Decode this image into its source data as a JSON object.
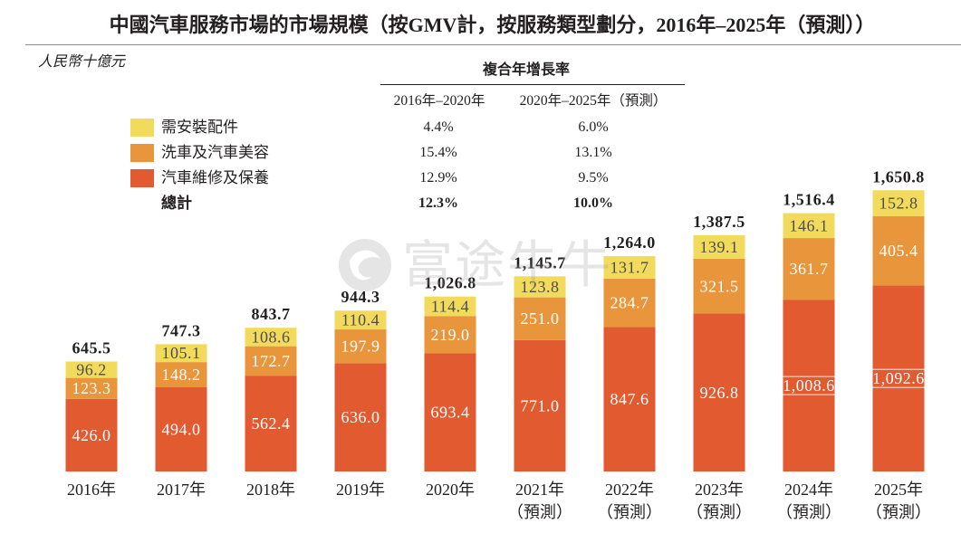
{
  "watermark": "富途牛牛",
  "chart_data": {
    "type": "bar",
    "stacked": true,
    "title": "中國汽車服務市場的市場規模（按GMV計，按服務類型劃分，2016年–2025年（預測））",
    "ylabel": "人民幣十億元",
    "xlabel": "",
    "categories": [
      "2016年",
      "2017年",
      "2018年",
      "2019年",
      "2020年",
      "2021年（預測）",
      "2022年（預測）",
      "2023年（預測）",
      "2024年（預測）",
      "2025年（預測）"
    ],
    "series": [
      {
        "name": "汽車維修及保養",
        "color": "#E15A30",
        "values": [
          426.0,
          494.0,
          562.4,
          636.0,
          693.4,
          771.0,
          847.6,
          926.8,
          1008.6,
          1092.6
        ]
      },
      {
        "name": "洗車及汽車美容",
        "color": "#E9953B",
        "values": [
          123.3,
          148.2,
          172.7,
          197.9,
          219.0,
          251.0,
          284.7,
          321.5,
          361.7,
          405.4
        ]
      },
      {
        "name": "需安裝配件",
        "color": "#F2DB5C",
        "values": [
          96.2,
          105.1,
          108.6,
          110.4,
          114.4,
          123.8,
          131.7,
          139.1,
          146.1,
          152.8
        ]
      }
    ],
    "totals": [
      645.5,
      747.3,
      843.7,
      944.3,
      1026.8,
      1145.7,
      1264.0,
      1387.5,
      1516.4,
      1650.8
    ],
    "ylim": [
      0,
      1700
    ],
    "grid": false,
    "legend_position": "top-left"
  },
  "cagr_table": {
    "title": "複合年增長率",
    "columns": [
      "2016年–2020年",
      "2020年–2025年（預測）"
    ],
    "rows": [
      {
        "values": [
          "4.4%",
          "6.0%"
        ]
      },
      {
        "values": [
          "15.4%",
          "13.1%"
        ]
      },
      {
        "values": [
          "12.9%",
          "9.5%"
        ]
      }
    ],
    "total": {
      "label": "總計",
      "values": [
        "12.3%",
        "10.0%"
      ]
    }
  }
}
